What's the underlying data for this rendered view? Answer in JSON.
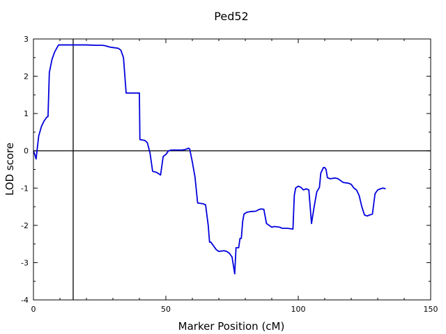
{
  "chart_data": {
    "type": "line",
    "title": "Ped52",
    "xlabel": "Marker Position (cM)",
    "ylabel": "LOD score",
    "xlim": [
      0,
      150
    ],
    "ylim": [
      -4,
      3
    ],
    "x_ticks": [
      "0",
      "50",
      "100",
      "150"
    ],
    "y_ticks": [
      "-4",
      "-3",
      "-2",
      "-1",
      "0",
      "1",
      "2",
      "3"
    ],
    "grid": false,
    "legend": "none",
    "reference_lines": {
      "y": 0,
      "x": 15
    },
    "line_color": "#0000dd",
    "reference_color": "#000000",
    "series": [
      {
        "points": [
          [
            0,
            0.0
          ],
          [
            0.5,
            -0.1
          ],
          [
            1,
            -0.22
          ],
          [
            1.5,
            0.1
          ],
          [
            2,
            0.4
          ],
          [
            3,
            0.65
          ],
          [
            4,
            0.8
          ],
          [
            5,
            0.9
          ],
          [
            5.5,
            0.92
          ],
          [
            6,
            2.1
          ],
          [
            7,
            2.45
          ],
          [
            8,
            2.65
          ],
          [
            9,
            2.78
          ],
          [
            9.5,
            2.84
          ],
          [
            12,
            2.84
          ],
          [
            16,
            2.84
          ],
          [
            20,
            2.84
          ],
          [
            24,
            2.83
          ],
          [
            26,
            2.83
          ],
          [
            27,
            2.82
          ],
          [
            28,
            2.8
          ],
          [
            29,
            2.78
          ],
          [
            30,
            2.77
          ],
          [
            32,
            2.75
          ],
          [
            33,
            2.7
          ],
          [
            34,
            2.5
          ],
          [
            35,
            1.55
          ],
          [
            40,
            1.55
          ],
          [
            40.2,
            0.3
          ],
          [
            42,
            0.28
          ],
          [
            43,
            0.22
          ],
          [
            44,
            -0.05
          ],
          [
            45,
            -0.55
          ],
          [
            46.5,
            -0.58
          ],
          [
            48,
            -0.65
          ],
          [
            49,
            -0.15
          ],
          [
            50,
            -0.1
          ],
          [
            51,
            0.0
          ],
          [
            52,
            0.02
          ],
          [
            56,
            0.02
          ],
          [
            57,
            0.03
          ],
          [
            58,
            0.05
          ],
          [
            58.5,
            0.07
          ],
          [
            59,
            0.05
          ],
          [
            60,
            -0.3
          ],
          [
            61,
            -0.7
          ],
          [
            62,
            -1.4
          ],
          [
            64,
            -1.42
          ],
          [
            65,
            -1.45
          ],
          [
            66,
            -2.0
          ],
          [
            66.5,
            -2.45
          ],
          [
            67,
            -2.45
          ],
          [
            68,
            -2.55
          ],
          [
            69,
            -2.65
          ],
          [
            70,
            -2.7
          ],
          [
            72,
            -2.68
          ],
          [
            73,
            -2.7
          ],
          [
            74,
            -2.75
          ],
          [
            75,
            -2.85
          ],
          [
            76,
            -3.3
          ],
          [
            76.5,
            -2.6
          ],
          [
            77.5,
            -2.6
          ],
          [
            78,
            -2.35
          ],
          [
            78.5,
            -2.35
          ],
          [
            79,
            -1.9
          ],
          [
            79.5,
            -1.7
          ],
          [
            80.5,
            -1.65
          ],
          [
            82,
            -1.63
          ],
          [
            84,
            -1.62
          ],
          [
            85,
            -1.58
          ],
          [
            86,
            -1.56
          ],
          [
            87,
            -1.57
          ],
          [
            88,
            -1.95
          ],
          [
            89,
            -2.0
          ],
          [
            90,
            -2.05
          ],
          [
            91,
            -2.03
          ],
          [
            93,
            -2.05
          ],
          [
            94,
            -2.08
          ],
          [
            96,
            -2.08
          ],
          [
            98,
            -2.1
          ],
          [
            98.5,
            -1.2
          ],
          [
            99,
            -1.0
          ],
          [
            100,
            -0.95
          ],
          [
            101,
            -0.98
          ],
          [
            102,
            -1.05
          ],
          [
            103,
            -1.02
          ],
          [
            104,
            -1.05
          ],
          [
            104.5,
            -1.5
          ],
          [
            105,
            -1.95
          ],
          [
            106,
            -1.5
          ],
          [
            107,
            -1.1
          ],
          [
            108,
            -0.98
          ],
          [
            108.5,
            -0.6
          ],
          [
            109.5,
            -0.45
          ],
          [
            110,
            -0.45
          ],
          [
            110.5,
            -0.5
          ],
          [
            111,
            -0.72
          ],
          [
            112,
            -0.75
          ],
          [
            114,
            -0.73
          ],
          [
            115,
            -0.75
          ],
          [
            116,
            -0.8
          ],
          [
            117,
            -0.85
          ],
          [
            119,
            -0.87
          ],
          [
            120,
            -0.9
          ],
          [
            121,
            -1.0
          ],
          [
            122,
            -1.05
          ],
          [
            123,
            -1.2
          ],
          [
            124,
            -1.5
          ],
          [
            125,
            -1.72
          ],
          [
            126,
            -1.75
          ],
          [
            127,
            -1.72
          ],
          [
            128,
            -1.7
          ],
          [
            129,
            -1.15
          ],
          [
            130,
            -1.05
          ],
          [
            131,
            -1.02
          ],
          [
            132,
            -1.0
          ],
          [
            133,
            -1.02
          ]
        ]
      }
    ]
  }
}
